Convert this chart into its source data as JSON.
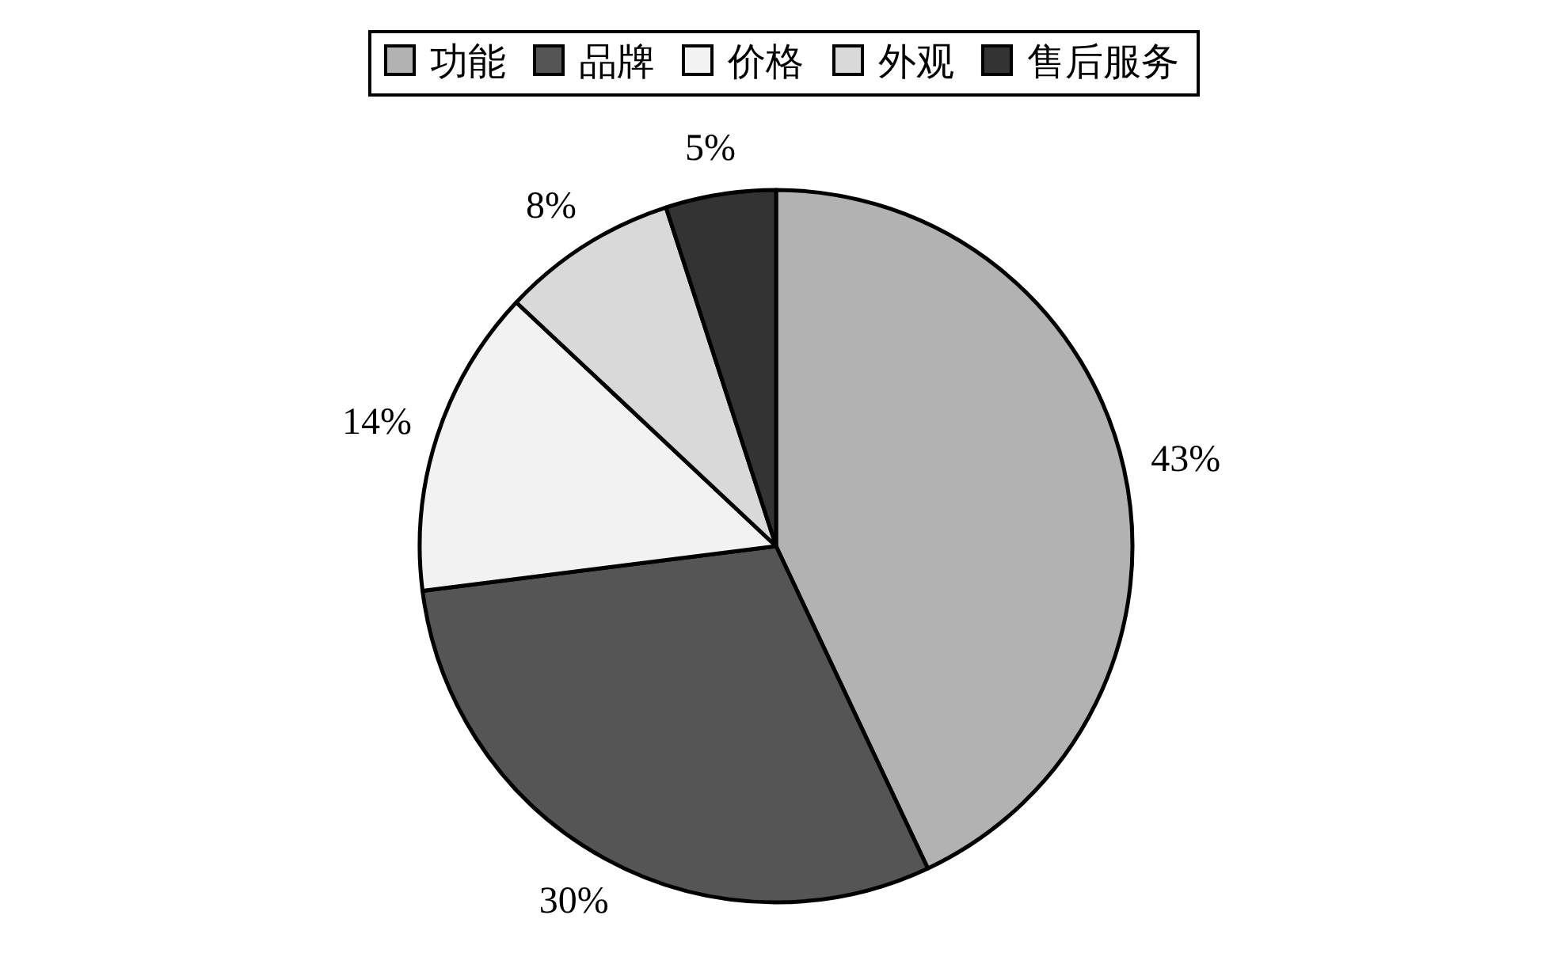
{
  "chart_data": {
    "type": "pie",
    "categories": [
      "功能",
      "品牌",
      "价格",
      "外观",
      "售后服务"
    ],
    "values": [
      43,
      30,
      14,
      8,
      5
    ],
    "colors": [
      "#b2b2b2",
      "#555555",
      "#f2f2f2",
      "#d9d9d9",
      "#333333"
    ],
    "value_labels": [
      "43%",
      "30%",
      "14%",
      "8%",
      "5%"
    ],
    "legend": "top"
  }
}
